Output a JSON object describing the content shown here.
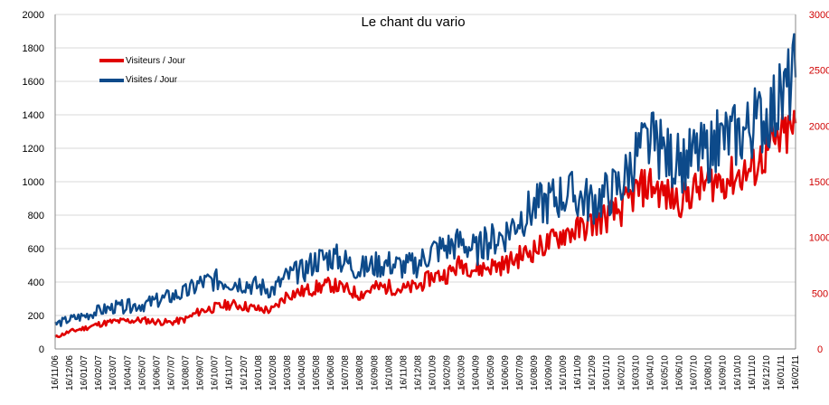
{
  "chart_data": {
    "type": "line",
    "title": "Le chant du vario",
    "xlabel": "",
    "ylabel": "",
    "y_left": {
      "lim": [
        0,
        2000
      ],
      "ticks": [
        "0",
        "200",
        "400",
        "600",
        "800",
        "1000",
        "1200",
        "1400",
        "1600",
        "1800",
        "2000"
      ]
    },
    "y_right": {
      "lim": [
        0,
        3000
      ],
      "ticks": [
        "0",
        "500",
        "1000",
        "1500",
        "2000",
        "2500",
        "3000"
      ]
    },
    "x_ticks": [
      "16/11/06",
      "16/12/06",
      "16/01/07",
      "16/02/07",
      "16/03/07",
      "16/04/07",
      "16/05/07",
      "16/06/07",
      "16/07/07",
      "16/08/07",
      "16/09/07",
      "16/10/07",
      "16/11/07",
      "16/12/07",
      "16/01/08",
      "16/02/08",
      "16/03/08",
      "16/04/08",
      "16/05/08",
      "16/06/08",
      "16/07/08",
      "16/08/08",
      "16/09/08",
      "16/10/08",
      "16/11/08",
      "16/12/08",
      "16/01/09",
      "16/02/09",
      "16/03/09",
      "16/04/09",
      "16/05/09",
      "16/06/09",
      "16/07/09",
      "16/08/09",
      "16/09/09",
      "16/10/09",
      "16/11/09",
      "16/12/09",
      "16/01/10",
      "16/02/10",
      "16/03/10",
      "16/04/10",
      "16/05/10",
      "16/06/10",
      "16/07/10",
      "16/08/10",
      "16/09/10",
      "16/10/10",
      "16/11/10",
      "16/12/10",
      "16/01/11",
      "16/02/11"
    ],
    "grid": true,
    "legend_position": "top-left",
    "series": [
      {
        "name": "Visiteurs / Jour",
        "color": "#e00000",
        "axis": "left",
        "values": [
          70,
          105,
          125,
          150,
          165,
          170,
          175,
          165,
          160,
          180,
          230,
          250,
          270,
          260,
          240,
          235,
          330,
          345,
          370,
          390,
          360,
          330,
          370,
          375,
          360,
          380,
          440,
          450,
          520,
          480,
          500,
          510,
          560,
          600,
          640,
          700,
          720,
          760,
          800,
          840,
          950,
          1000,
          930,
          900,
          960,
          1010,
          1020,
          1050,
          1080,
          1190,
          1270,
          1340
        ]
      },
      {
        "name": "Visites / Jour",
        "color": "#0d4a8a",
        "axis": "left",
        "values": [
          150,
          180,
          200,
          230,
          250,
          260,
          270,
          290,
          320,
          340,
          400,
          420,
          410,
          400,
          380,
          360,
          440,
          470,
          540,
          560,
          530,
          480,
          510,
          520,
          500,
          520,
          600,
          620,
          650,
          600,
          660,
          700,
          800,
          860,
          900,
          940,
          920,
          900,
          940,
          1000,
          1180,
          1250,
          1180,
          1120,
          1180,
          1200,
          1280,
          1300,
          1350,
          1420,
          1500,
          1680
        ]
      }
    ]
  }
}
